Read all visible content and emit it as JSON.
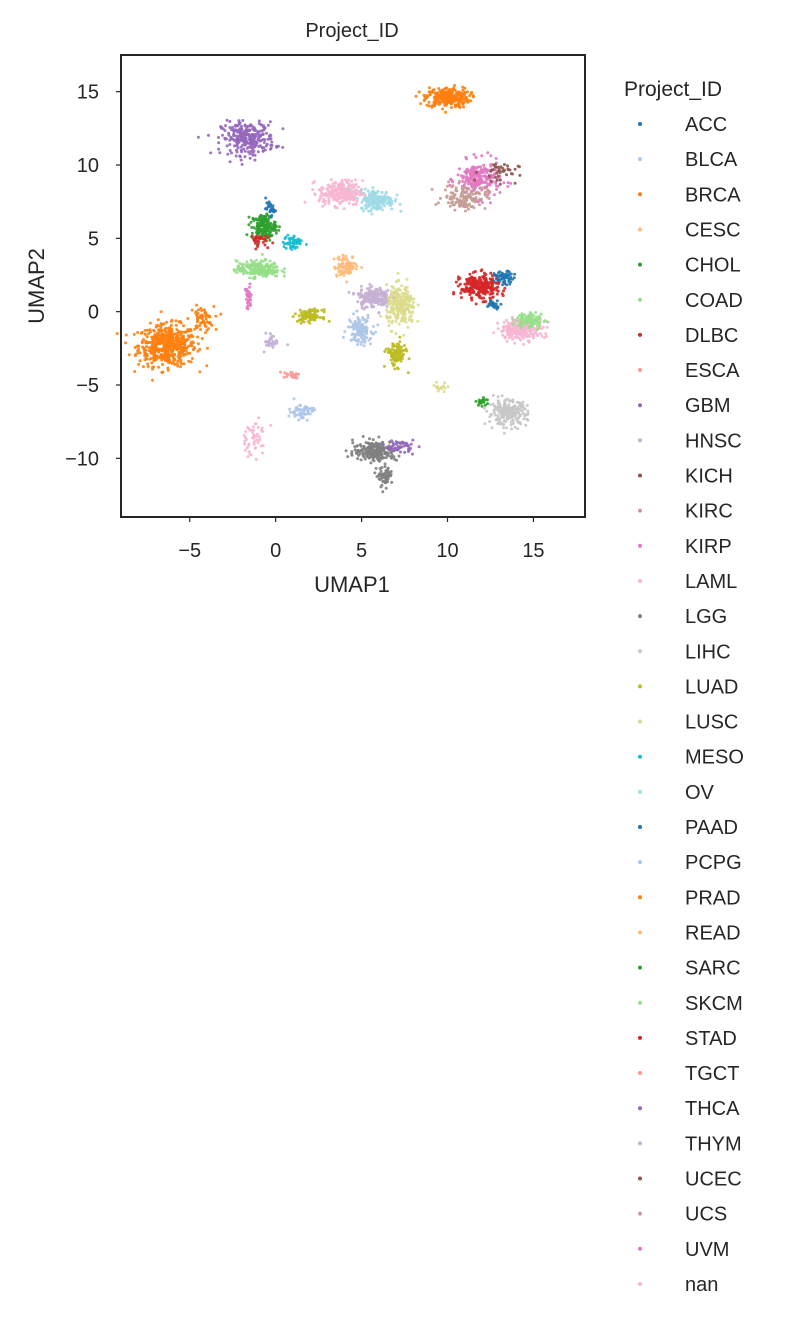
{
  "chart_data": {
    "type": "scatter",
    "title": "Project_ID",
    "xlabel": "UMAP1",
    "ylabel": "UMAP2",
    "xlim": [
      -9,
      18
    ],
    "ylim": [
      -14,
      17.5
    ],
    "xticks": [
      -5,
      0,
      5,
      10,
      15
    ],
    "xtick_labels": [
      "−5",
      "0",
      "5",
      "10",
      "15"
    ],
    "yticks": [
      -10,
      -5,
      0,
      5,
      10,
      15
    ],
    "ytick_labels": [
      "−10",
      "−5",
      "0",
      "5",
      "10",
      "15"
    ],
    "grid": false,
    "legend": {
      "title": "Project_ID",
      "placement": "outside right"
    },
    "series": [
      {
        "name": "ACC",
        "color": "#1f77b4"
      },
      {
        "name": "BLCA",
        "color": "#aec7e8"
      },
      {
        "name": "BRCA",
        "color": "#ff7f0e"
      },
      {
        "name": "CESC",
        "color": "#ffbb78"
      },
      {
        "name": "CHOL",
        "color": "#2ca02c"
      },
      {
        "name": "COAD",
        "color": "#98df8a"
      },
      {
        "name": "DLBC",
        "color": "#d62728"
      },
      {
        "name": "ESCA",
        "color": "#ff9896"
      },
      {
        "name": "GBM",
        "color": "#9467bd"
      },
      {
        "name": "HNSC",
        "color": "#c5b0d5"
      },
      {
        "name": "KICH",
        "color": "#8c564b"
      },
      {
        "name": "KIRC",
        "color": "#c49c94"
      },
      {
        "name": "KIRP",
        "color": "#e377c2"
      },
      {
        "name": "LAML",
        "color": "#f7b6d2"
      },
      {
        "name": "LGG",
        "color": "#7f7f7f"
      },
      {
        "name": "LIHC",
        "color": "#c7c7c7"
      },
      {
        "name": "LUAD",
        "color": "#bcbd22"
      },
      {
        "name": "LUSC",
        "color": "#dbdb8d"
      },
      {
        "name": "MESO",
        "color": "#17becf"
      },
      {
        "name": "OV",
        "color": "#9edae5"
      },
      {
        "name": "PAAD",
        "color": "#1f77b4"
      },
      {
        "name": "PCPG",
        "color": "#aec7e8"
      },
      {
        "name": "PRAD",
        "color": "#ff7f0e"
      },
      {
        "name": "READ",
        "color": "#ffbb78"
      },
      {
        "name": "SARC",
        "color": "#2ca02c"
      },
      {
        "name": "SKCM",
        "color": "#98df8a"
      },
      {
        "name": "STAD",
        "color": "#d62728"
      },
      {
        "name": "TGCT",
        "color": "#ff9896"
      },
      {
        "name": "THCA",
        "color": "#9467bd"
      },
      {
        "name": "THYM",
        "color": "#c5b0d5"
      },
      {
        "name": "UCEC",
        "color": "#8c564b"
      },
      {
        "name": "UCS",
        "color": "#c49c94"
      },
      {
        "name": "UVM",
        "color": "#e377c2"
      },
      {
        "name": "nan",
        "color": "#f7b6d2"
      }
    ],
    "clusters": [
      {
        "series": "BRCA",
        "cx": -6.3,
        "cy": -2.3,
        "sx": 1.2,
        "sy": 1.0,
        "n": 520
      },
      {
        "series": "BRCA",
        "cx": -4.3,
        "cy": -0.5,
        "sx": 0.5,
        "sy": 0.6,
        "n": 60
      },
      {
        "series": "PRAD",
        "cx": 10.0,
        "cy": 14.6,
        "sx": 0.9,
        "sy": 0.5,
        "n": 260
      },
      {
        "series": "GBM",
        "cx": -1.6,
        "cy": 11.8,
        "sx": 1.1,
        "sy": 0.8,
        "n": 280
      },
      {
        "series": "KIRP",
        "cx": 11.8,
        "cy": 9.0,
        "sx": 0.9,
        "sy": 0.9,
        "n": 220
      },
      {
        "series": "KIRC",
        "cx": 11.0,
        "cy": 7.8,
        "sx": 0.9,
        "sy": 0.6,
        "n": 120
      },
      {
        "series": "UCEC",
        "cx": 13.0,
        "cy": 9.5,
        "sx": 0.8,
        "sy": 0.5,
        "n": 40
      },
      {
        "series": "LAML",
        "cx": 3.8,
        "cy": 8.1,
        "sx": 0.9,
        "sy": 0.6,
        "n": 260
      },
      {
        "series": "OV",
        "cx": 5.9,
        "cy": 7.6,
        "sx": 0.7,
        "sy": 0.5,
        "n": 180
      },
      {
        "series": "CHOL",
        "cx": -0.7,
        "cy": 5.8,
        "sx": 0.5,
        "sy": 0.6,
        "n": 160
      },
      {
        "series": "ACC",
        "cx": -0.3,
        "cy": 7.0,
        "sx": 0.2,
        "sy": 0.3,
        "n": 30
      },
      {
        "series": "MESO",
        "cx": 1.0,
        "cy": 4.7,
        "sx": 0.4,
        "sy": 0.4,
        "n": 50
      },
      {
        "series": "DLBC",
        "cx": -1.1,
        "cy": 4.9,
        "sx": 0.4,
        "sy": 0.3,
        "n": 30
      },
      {
        "series": "COAD",
        "cx": -1.0,
        "cy": 2.9,
        "sx": 0.9,
        "sy": 0.4,
        "n": 220
      },
      {
        "series": "CESC",
        "cx": 4.1,
        "cy": 3.1,
        "sx": 0.5,
        "sy": 0.5,
        "n": 90
      },
      {
        "series": "HNSC",
        "cx": 5.7,
        "cy": 1.0,
        "sx": 0.7,
        "sy": 0.5,
        "n": 180
      },
      {
        "series": "LUSC",
        "cx": 7.3,
        "cy": 0.3,
        "sx": 0.6,
        "sy": 1.0,
        "n": 220
      },
      {
        "series": "BLCA",
        "cx": 4.9,
        "cy": -1.2,
        "sx": 0.5,
        "sy": 0.7,
        "n": 120
      },
      {
        "series": "LUAD",
        "cx": 2.0,
        "cy": -0.3,
        "sx": 0.5,
        "sy": 0.3,
        "n": 100
      },
      {
        "series": "LUAD",
        "cx": 7.0,
        "cy": -2.9,
        "sx": 0.4,
        "sy": 0.6,
        "n": 110
      },
      {
        "series": "KIRP",
        "cx": -1.6,
        "cy": 0.9,
        "sx": 0.15,
        "sy": 0.6,
        "n": 30
      },
      {
        "series": "HNSC",
        "cx": -0.2,
        "cy": -2.0,
        "sx": 0.3,
        "sy": 0.4,
        "n": 30
      },
      {
        "series": "STAD",
        "cx": 11.9,
        "cy": 1.7,
        "sx": 0.8,
        "sy": 0.6,
        "n": 260
      },
      {
        "series": "PAAD",
        "cx": 13.3,
        "cy": 2.3,
        "sx": 0.4,
        "sy": 0.3,
        "n": 60
      },
      {
        "series": "PAAD",
        "cx": 12.7,
        "cy": 0.5,
        "sx": 0.3,
        "sy": 0.2,
        "n": 30
      },
      {
        "series": "nan",
        "cx": 14.3,
        "cy": -1.2,
        "sx": 0.9,
        "sy": 0.5,
        "n": 220
      },
      {
        "series": "COAD",
        "cx": 14.8,
        "cy": -0.6,
        "sx": 0.6,
        "sy": 0.4,
        "n": 90
      },
      {
        "series": "ESCA",
        "cx": 0.8,
        "cy": -4.3,
        "sx": 0.4,
        "sy": 0.15,
        "n": 20
      },
      {
        "series": "BLCA",
        "cx": 1.5,
        "cy": -6.8,
        "sx": 0.5,
        "sy": 0.4,
        "n": 60
      },
      {
        "series": "LAML",
        "cx": -1.3,
        "cy": -8.6,
        "sx": 0.6,
        "sy": 0.9,
        "n": 50
      },
      {
        "series": "LIHC",
        "cx": 13.5,
        "cy": -6.9,
        "sx": 0.8,
        "sy": 0.6,
        "n": 220
      },
      {
        "series": "LGG",
        "cx": 5.8,
        "cy": -9.5,
        "sx": 0.9,
        "sy": 0.5,
        "n": 220
      },
      {
        "series": "LGG",
        "cx": 6.4,
        "cy": -11.3,
        "sx": 0.3,
        "sy": 0.5,
        "n": 60
      },
      {
        "series": "THCA",
        "cx": 7.2,
        "cy": -9.2,
        "sx": 0.6,
        "sy": 0.3,
        "n": 50
      },
      {
        "series": "SARC",
        "cx": 12.0,
        "cy": -6.1,
        "sx": 0.3,
        "sy": 0.2,
        "n": 20
      },
      {
        "series": "LUSC",
        "cx": 9.6,
        "cy": -5.2,
        "sx": 0.3,
        "sy": 0.3,
        "n": 15
      }
    ]
  }
}
